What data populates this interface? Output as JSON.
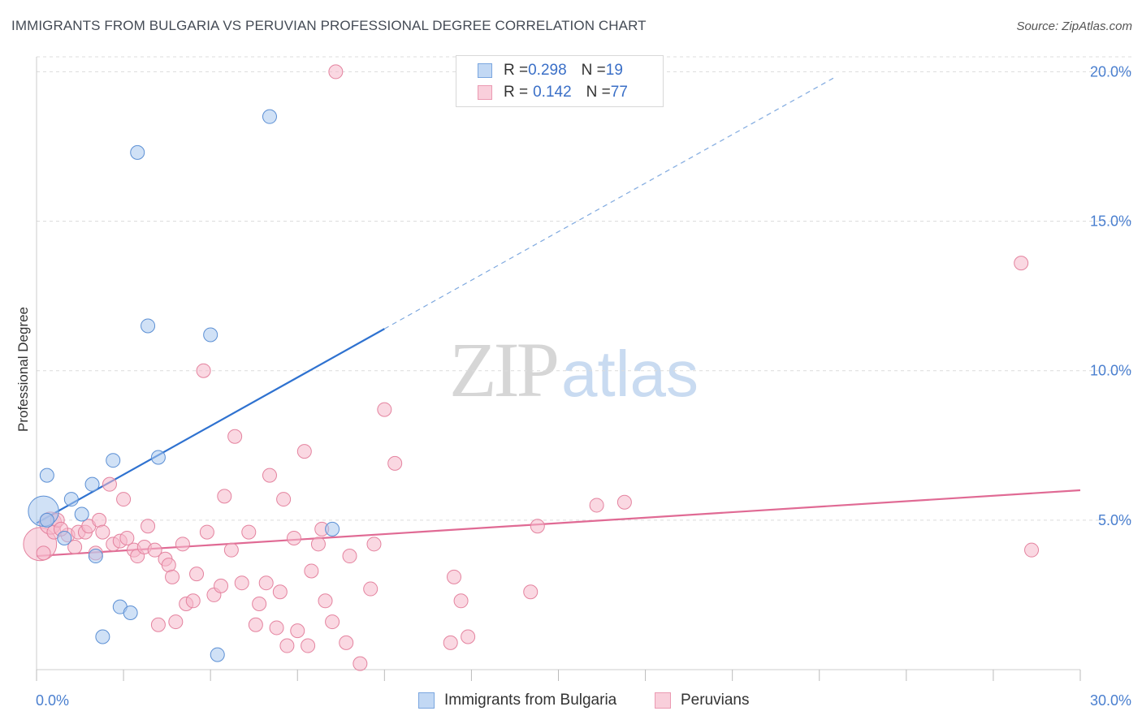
{
  "header": {
    "title": "IMMIGRANTS FROM BULGARIA VS PERUVIAN PROFESSIONAL DEGREE CORRELATION CHART",
    "source": "Source: ZipAtlas.com"
  },
  "watermark": {
    "zip": "ZIP",
    "atlas": "atlas"
  },
  "legend": {
    "rows": [
      {
        "r_label": "R = ",
        "r_value": "0.298",
        "n_label": "N = ",
        "n_value": "19",
        "color": "#a9c8ef"
      },
      {
        "r_label": "R = ",
        "r_value": "0.142",
        "n_label": "N = ",
        "n_value": "77",
        "color": "#f6b8ca"
      }
    ]
  },
  "bottom_legend": {
    "series_a": "Immigrants from Bulgaria",
    "series_b": "Peruvians"
  },
  "chart_data": {
    "type": "scatter",
    "title": "IMMIGRANTS FROM BULGARIA VS PERUVIAN PROFESSIONAL DEGREE CORRELATION CHART",
    "xlabel": "",
    "ylabel": "Professional Degree",
    "xlim": [
      0,
      30
    ],
    "ylim": [
      0,
      20.5
    ],
    "x_tick_labels": [
      "0.0%",
      "30.0%"
    ],
    "y_ticks": [
      5,
      10,
      15,
      20
    ],
    "y_tick_labels": [
      "5.0%",
      "10.0%",
      "15.0%",
      "20.0%"
    ],
    "grid": true,
    "legend_position": "top-center",
    "series": [
      {
        "name": "Immigrants from Bulgaria",
        "color": "#a9c8ef",
        "stroke": "#5b8fd4",
        "trend_color": "#2f72d0",
        "trend": {
          "x0": 0,
          "y0": 4.9,
          "x1": 10,
          "y1": 11.4,
          "dashed_to_x": 23
        },
        "points": [
          [
            0.2,
            5.3,
            2.2
          ],
          [
            0.3,
            5.0,
            1.0
          ],
          [
            0.3,
            6.5,
            1.0
          ],
          [
            1.0,
            5.7,
            1.0
          ],
          [
            1.3,
            5.2,
            1.0
          ],
          [
            0.8,
            4.4,
            1.0
          ],
          [
            1.6,
            6.2,
            1.0
          ],
          [
            1.7,
            3.8,
            1.0
          ],
          [
            2.2,
            7.0,
            1.0
          ],
          [
            2.4,
            2.1,
            1.0
          ],
          [
            2.7,
            1.9,
            1.0
          ],
          [
            1.9,
            1.1,
            1.0
          ],
          [
            2.9,
            17.3,
            1.0
          ],
          [
            3.2,
            11.5,
            1.0
          ],
          [
            3.5,
            7.1,
            1.0
          ],
          [
            5.0,
            11.2,
            1.0
          ],
          [
            5.2,
            0.5,
            1.0
          ],
          [
            6.7,
            18.5,
            1.0
          ],
          [
            8.5,
            4.7,
            1.0
          ]
        ]
      },
      {
        "name": "Peruvians",
        "color": "#f6b8ca",
        "stroke": "#e4839f",
        "trend_color": "#e06a94",
        "trend": {
          "x0": 0,
          "y0": 3.8,
          "x1": 30,
          "y1": 6.0
        },
        "points": [
          [
            0.1,
            4.2,
            2.4
          ],
          [
            0.4,
            4.9,
            1.6
          ],
          [
            0.5,
            4.6,
            1.0
          ],
          [
            0.6,
            5.0,
            1.0
          ],
          [
            0.9,
            4.5,
            1.0
          ],
          [
            1.1,
            4.1,
            1.0
          ],
          [
            1.2,
            4.6,
            1.0
          ],
          [
            1.4,
            4.6,
            1.0
          ],
          [
            1.5,
            4.8,
            1.0
          ],
          [
            1.7,
            3.9,
            1.0
          ],
          [
            1.8,
            5.0,
            1.0
          ],
          [
            1.9,
            4.6,
            1.0
          ],
          [
            2.1,
            6.2,
            1.0
          ],
          [
            2.2,
            4.2,
            1.0
          ],
          [
            2.4,
            4.3,
            1.0
          ],
          [
            2.5,
            5.7,
            1.0
          ],
          [
            2.6,
            4.4,
            1.0
          ],
          [
            2.8,
            4.0,
            1.0
          ],
          [
            2.9,
            3.8,
            1.0
          ],
          [
            3.1,
            4.1,
            1.0
          ],
          [
            3.2,
            4.8,
            1.0
          ],
          [
            3.4,
            4.0,
            1.0
          ],
          [
            3.5,
            1.5,
            1.0
          ],
          [
            3.7,
            3.7,
            1.0
          ],
          [
            3.8,
            3.5,
            1.0
          ],
          [
            3.9,
            3.1,
            1.0
          ],
          [
            4.0,
            1.6,
            1.0
          ],
          [
            4.2,
            4.2,
            1.0
          ],
          [
            4.3,
            2.2,
            1.0
          ],
          [
            4.5,
            2.3,
            1.0
          ],
          [
            4.6,
            3.2,
            1.0
          ],
          [
            4.8,
            10.0,
            1.0
          ],
          [
            4.9,
            4.6,
            1.0
          ],
          [
            5.1,
            2.5,
            1.0
          ],
          [
            5.3,
            2.8,
            1.0
          ],
          [
            5.4,
            5.8,
            1.0
          ],
          [
            5.6,
            4.0,
            1.0
          ],
          [
            5.7,
            7.8,
            1.0
          ],
          [
            5.9,
            2.9,
            1.0
          ],
          [
            6.1,
            4.6,
            1.0
          ],
          [
            6.3,
            1.5,
            1.0
          ],
          [
            6.4,
            2.2,
            1.0
          ],
          [
            6.6,
            2.9,
            1.0
          ],
          [
            6.7,
            6.5,
            1.0
          ],
          [
            6.9,
            1.4,
            1.0
          ],
          [
            7.0,
            2.6,
            1.0
          ],
          [
            7.1,
            5.7,
            1.0
          ],
          [
            7.2,
            0.8,
            1.0
          ],
          [
            7.4,
            4.4,
            1.0
          ],
          [
            7.5,
            1.3,
            1.0
          ],
          [
            7.7,
            7.3,
            1.0
          ],
          [
            7.8,
            0.8,
            1.0
          ],
          [
            7.9,
            3.3,
            1.0
          ],
          [
            8.1,
            4.2,
            1.0
          ],
          [
            8.2,
            4.7,
            1.0
          ],
          [
            8.3,
            2.3,
            1.0
          ],
          [
            8.5,
            1.6,
            1.0
          ],
          [
            8.6,
            20.0,
            1.0
          ],
          [
            8.9,
            0.9,
            1.0
          ],
          [
            9.0,
            3.8,
            1.0
          ],
          [
            9.3,
            0.2,
            1.0
          ],
          [
            9.6,
            2.7,
            1.0
          ],
          [
            9.7,
            4.2,
            1.0
          ],
          [
            10.0,
            8.7,
            1.0
          ],
          [
            10.3,
            6.9,
            1.0
          ],
          [
            11.9,
            0.9,
            1.0
          ],
          [
            12.0,
            3.1,
            1.0
          ],
          [
            12.2,
            2.3,
            1.0
          ],
          [
            12.4,
            1.1,
            1.0
          ],
          [
            14.2,
            2.6,
            1.0
          ],
          [
            14.4,
            4.8,
            1.0
          ],
          [
            16.1,
            5.5,
            1.0
          ],
          [
            16.9,
            5.6,
            1.0
          ],
          [
            28.3,
            13.6,
            1.0
          ],
          [
            28.6,
            4.0,
            1.0
          ],
          [
            0.2,
            3.9,
            1.0
          ],
          [
            0.7,
            4.7,
            1.0
          ]
        ]
      }
    ]
  }
}
